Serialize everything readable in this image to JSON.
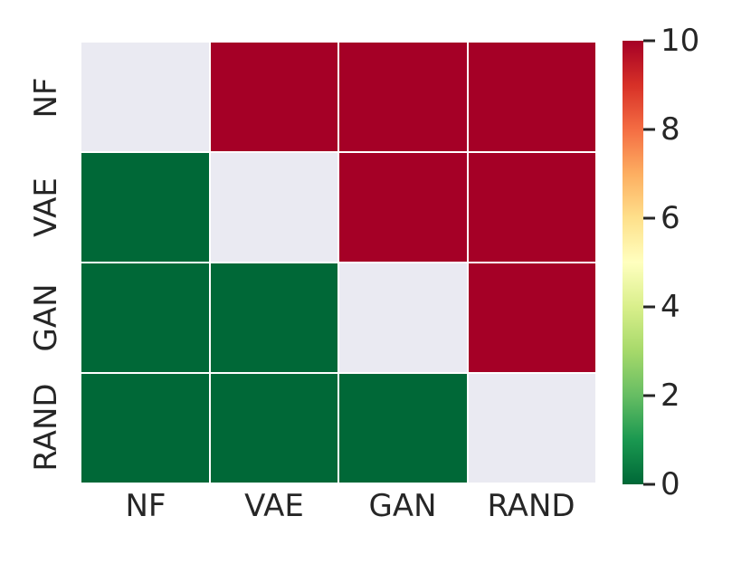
{
  "chart_data": {
    "type": "heatmap",
    "title": "",
    "xlabel": "",
    "ylabel": "",
    "x_categories": [
      "NF",
      "VAE",
      "GAN",
      "RAND"
    ],
    "y_categories": [
      "NF",
      "VAE",
      "GAN",
      "RAND"
    ],
    "matrix": [
      [
        null,
        10,
        10,
        10
      ],
      [
        0,
        null,
        10,
        10
      ],
      [
        0,
        0,
        null,
        10
      ],
      [
        0,
        0,
        0,
        null
      ]
    ],
    "masked_diagonal": true,
    "colormap": "RdYlGn_r",
    "colorbar": {
      "min": 0,
      "max": 10,
      "ticks": [
        "0",
        "2",
        "4",
        "6",
        "8",
        "10"
      ],
      "tick_values": [
        0,
        2,
        4,
        6,
        8,
        10
      ],
      "position": "right",
      "gradient_stops_bottom_to_top": [
        "#006837",
        "#1a9850",
        "#66bd63",
        "#a6d96a",
        "#d9ef8b",
        "#ffffbf",
        "#fee08b",
        "#fdae61",
        "#f46d43",
        "#d73027",
        "#a50026"
      ]
    },
    "colors": {
      "value_high": "#a50026",
      "value_low": "#006837",
      "masked_cell": "#eaeaf2",
      "gridline": "#ffffff",
      "text": "#262626",
      "background": "#ffffff"
    },
    "layout": {
      "grid_on": false,
      "legend": "none",
      "annotations": "none"
    }
  }
}
